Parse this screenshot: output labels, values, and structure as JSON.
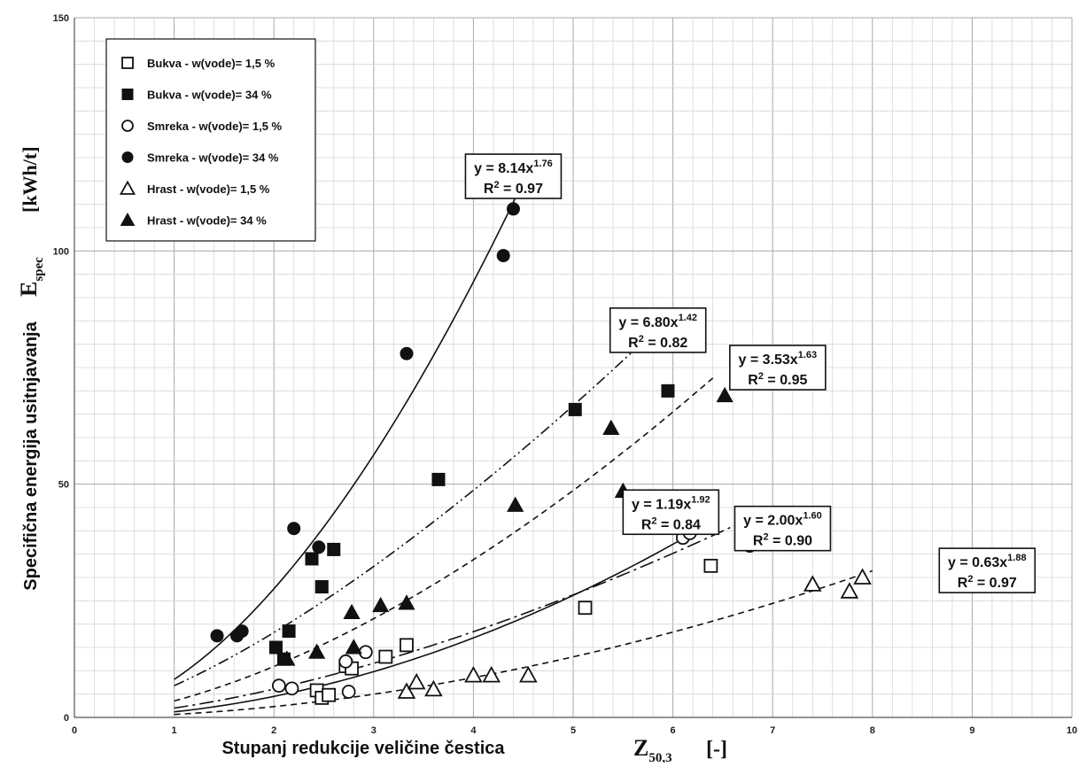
{
  "chart_data": {
    "type": "scatter",
    "x_axis": {
      "min": 0,
      "max": 10,
      "ticks": [
        0,
        1,
        2,
        3,
        4,
        5,
        6,
        7,
        8,
        9,
        10
      ],
      "minor_step": 0.2
    },
    "y_axis": {
      "min": 0,
      "max": 150,
      "ticks": [
        0,
        50,
        100,
        150
      ],
      "minor_step": 5
    },
    "grid": true,
    "legend_position": "top-left",
    "xlabel": {
      "text": "Stupanj redukcije veličine čestica",
      "symbol": "Z",
      "symbol_sub": "50,3",
      "unit": "[-]"
    },
    "ylabel": {
      "text": "Specifična energija usitnjavanja",
      "symbol": "E",
      "symbol_sub": "spec",
      "unit": "[kWh/t]"
    },
    "series": [
      {
        "name": "Bukva - w(vode)= 1,5 %",
        "marker": "square-open",
        "points": [
          [
            2.43,
            5.8
          ],
          [
            2.48,
            4.2
          ],
          [
            2.55,
            4.8
          ],
          [
            2.72,
            11.0
          ],
          [
            2.78,
            10.5
          ],
          [
            3.12,
            13.0
          ],
          [
            3.33,
            15.5
          ],
          [
            5.12,
            23.5
          ],
          [
            6.38,
            32.5
          ]
        ],
        "fit": {
          "a": 1.19,
          "b": 1.92,
          "x_range": [
            1,
            6.3
          ],
          "style": "solid"
        }
      },
      {
        "name": "Bukva - w(vode)= 34 %",
        "marker": "square-filled",
        "points": [
          [
            2.02,
            15.0
          ],
          [
            2.1,
            12.5
          ],
          [
            2.15,
            18.5
          ],
          [
            2.38,
            34.0
          ],
          [
            2.48,
            28.0
          ],
          [
            2.6,
            36.0
          ],
          [
            3.65,
            51.0
          ],
          [
            5.02,
            66.0
          ],
          [
            5.95,
            70.0
          ]
        ],
        "fit": {
          "a": 6.8,
          "b": 1.42,
          "x_range": [
            1,
            5.8
          ],
          "style": "dashdotdot"
        }
      },
      {
        "name": "Smreka - w(vode)= 1,5 %",
        "marker": "circle-open",
        "points": [
          [
            2.05,
            6.8
          ],
          [
            2.18,
            6.2
          ],
          [
            2.72,
            12.0
          ],
          [
            2.75,
            5.5
          ],
          [
            2.92,
            14.0
          ],
          [
            6.1,
            38.5
          ],
          [
            6.17,
            39.5
          ],
          [
            6.77,
            36.8
          ]
        ],
        "fit": {
          "a": 2.0,
          "b": 1.6,
          "x_range": [
            1,
            6.7
          ],
          "style": "dashdot"
        }
      },
      {
        "name": "Smreka - w(vode)= 34 %",
        "marker": "circle-filled",
        "points": [
          [
            1.43,
            17.5
          ],
          [
            1.63,
            17.5
          ],
          [
            1.68,
            18.5
          ],
          [
            2.2,
            40.5
          ],
          [
            2.45,
            36.5
          ],
          [
            3.33,
            78.0
          ],
          [
            4.3,
            99.0
          ],
          [
            4.4,
            109.0
          ]
        ],
        "fit": {
          "a": 8.14,
          "b": 1.76,
          "x_range": [
            1,
            4.45
          ],
          "style": "solid"
        }
      },
      {
        "name": "Hrast - w(vode)= 1,5 %",
        "marker": "triangle-open",
        "points": [
          [
            3.33,
            5.5
          ],
          [
            3.43,
            7.5
          ],
          [
            3.6,
            6.0
          ],
          [
            4.0,
            9.0
          ],
          [
            4.18,
            9.0
          ],
          [
            4.55,
            9.0
          ],
          [
            7.4,
            28.5
          ],
          [
            7.77,
            27.0
          ],
          [
            7.9,
            30.0
          ]
        ],
        "fit": {
          "a": 0.63,
          "b": 1.88,
          "x_range": [
            1,
            8
          ],
          "style": "dashed"
        }
      },
      {
        "name": "Hrast - w(vode)= 34 %",
        "marker": "triangle-filled",
        "points": [
          [
            2.13,
            12.5
          ],
          [
            2.43,
            14.0
          ],
          [
            2.78,
            22.5
          ],
          [
            2.8,
            15.0
          ],
          [
            3.07,
            24.0
          ],
          [
            3.33,
            24.5
          ],
          [
            4.42,
            45.5
          ],
          [
            5.38,
            62.0
          ],
          [
            5.5,
            48.5
          ],
          [
            6.52,
            69.0
          ]
        ],
        "fit": {
          "a": 3.53,
          "b": 1.63,
          "x_range": [
            1,
            6.4
          ],
          "style": "dashed"
        }
      }
    ],
    "annotations": [
      {
        "eq_coef": "8.14",
        "eq_exp": "1.76",
        "r2": "0.97",
        "x": 4.4,
        "y": 116
      },
      {
        "eq_coef": "6.80",
        "eq_exp": "1.42",
        "r2": "0.82",
        "x": 5.85,
        "y": 83
      },
      {
        "eq_coef": "3.53",
        "eq_exp": "1.63",
        "r2": "0.95",
        "x": 7.05,
        "y": 75
      },
      {
        "eq_coef": "1.19",
        "eq_exp": "1.92",
        "r2": "0.84",
        "x": 5.98,
        "y": 44
      },
      {
        "eq_coef": "2.00",
        "eq_exp": "1.60",
        "r2": "0.90",
        "x": 7.1,
        "y": 40.5
      },
      {
        "eq_coef": "0.63",
        "eq_exp": "1.88",
        "r2": "0.97",
        "x": 9.15,
        "y": 31.5
      }
    ]
  }
}
